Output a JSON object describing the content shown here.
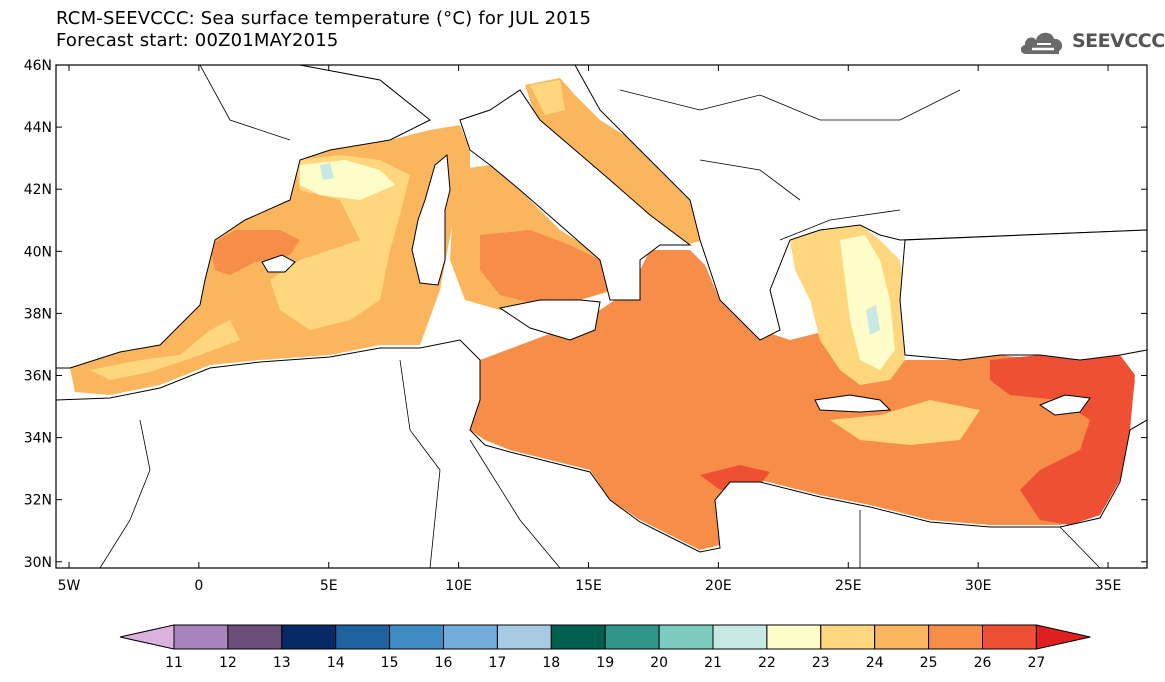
{
  "header": {
    "title_line1": "RCM-SEEVCCC: Sea surface temperature (°C) for JUL 2015",
    "title_line2": "Forecast start: 00Z01MAY2015"
  },
  "logo": {
    "text": "SEEVCCC",
    "icon": "cloud-icon"
  },
  "map": {
    "lon_range": [
      -5.5,
      36.5
    ],
    "lat_range": [
      29.8,
      46
    ],
    "lon_ticks": [
      {
        "value": -5,
        "label": "5W"
      },
      {
        "value": 0,
        "label": "0"
      },
      {
        "value": 5,
        "label": "5E"
      },
      {
        "value": 10,
        "label": "10E"
      },
      {
        "value": 15,
        "label": "15E"
      },
      {
        "value": 20,
        "label": "20E"
      },
      {
        "value": 25,
        "label": "25E"
      },
      {
        "value": 30,
        "label": "30E"
      },
      {
        "value": 35,
        "label": "35E"
      }
    ],
    "lat_ticks": [
      {
        "value": 30,
        "label": "30N"
      },
      {
        "value": 32,
        "label": "32N"
      },
      {
        "value": 34,
        "label": "34N"
      },
      {
        "value": 36,
        "label": "36N"
      },
      {
        "value": 38,
        "label": "38N"
      },
      {
        "value": 40,
        "label": "40N"
      },
      {
        "value": 42,
        "label": "42N"
      },
      {
        "value": 44,
        "label": "44N"
      },
      {
        "value": 46,
        "label": "46N"
      }
    ]
  },
  "colorbar": {
    "labels": [
      "11",
      "12",
      "13",
      "14",
      "15",
      "16",
      "17",
      "18",
      "19",
      "20",
      "21",
      "22",
      "23",
      "24",
      "25",
      "26",
      "27"
    ],
    "colors": [
      "#d9b3dc",
      "#a884bd",
      "#6b4f79",
      "#072a66",
      "#1f62a0",
      "#3f8cc3",
      "#72acd8",
      "#a7cbe3",
      "#00604f",
      "#2e958a",
      "#7dcbbe",
      "#c6e9e3",
      "#fefcc9",
      "#fdd67e",
      "#fbb55c",
      "#f68d48",
      "#ef5034",
      "#e01f20"
    ]
  }
}
